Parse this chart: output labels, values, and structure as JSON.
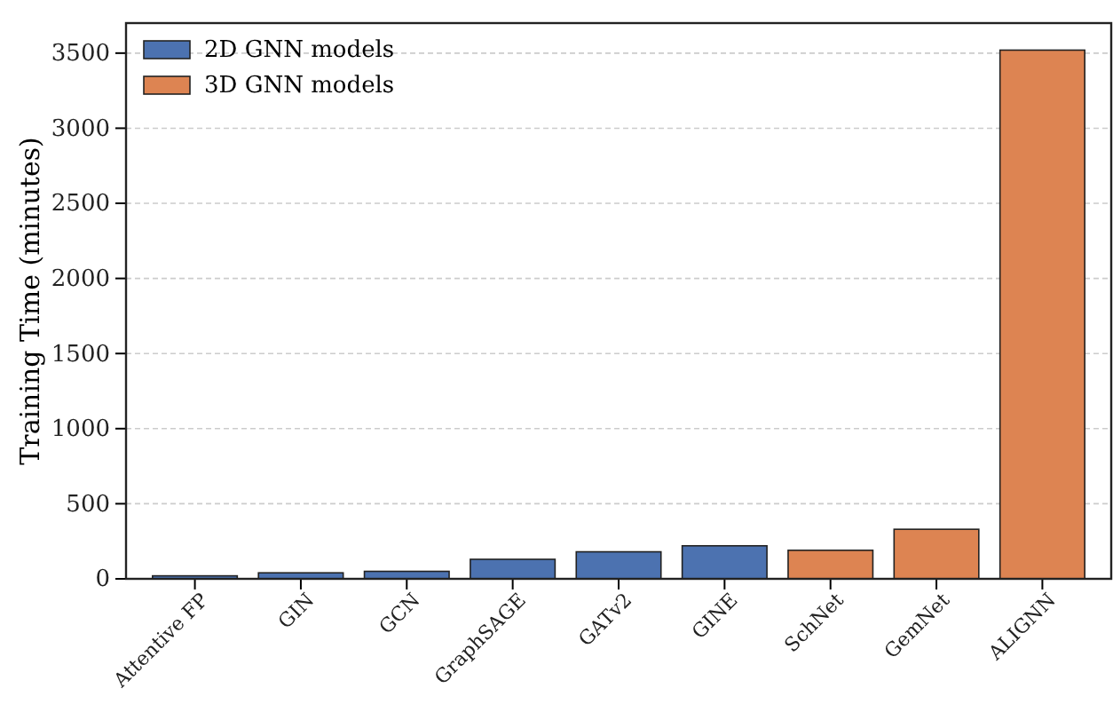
{
  "chart_data": {
    "type": "bar",
    "ylabel": "Training Time (minutes)",
    "categories": [
      "Attentive FP",
      "GIN",
      "GCN",
      "GraphSAGE",
      "GATv2",
      "GINE",
      "SchNet",
      "GemNet",
      "ALIGNN"
    ],
    "series": [
      {
        "name": "2D GNN models",
        "color": "#4c72b0",
        "values": [
          20,
          40,
          50,
          130,
          180,
          220,
          null,
          null,
          null
        ]
      },
      {
        "name": "3D GNN models",
        "color": "#dd8452",
        "values": [
          null,
          null,
          null,
          null,
          null,
          null,
          190,
          330,
          3520
        ]
      }
    ],
    "ylim": [
      0,
      3700
    ],
    "yticks": [
      0,
      500,
      1000,
      1500,
      2000,
      2500,
      3000,
      3500
    ],
    "grid": "y",
    "legend": "top left"
  }
}
